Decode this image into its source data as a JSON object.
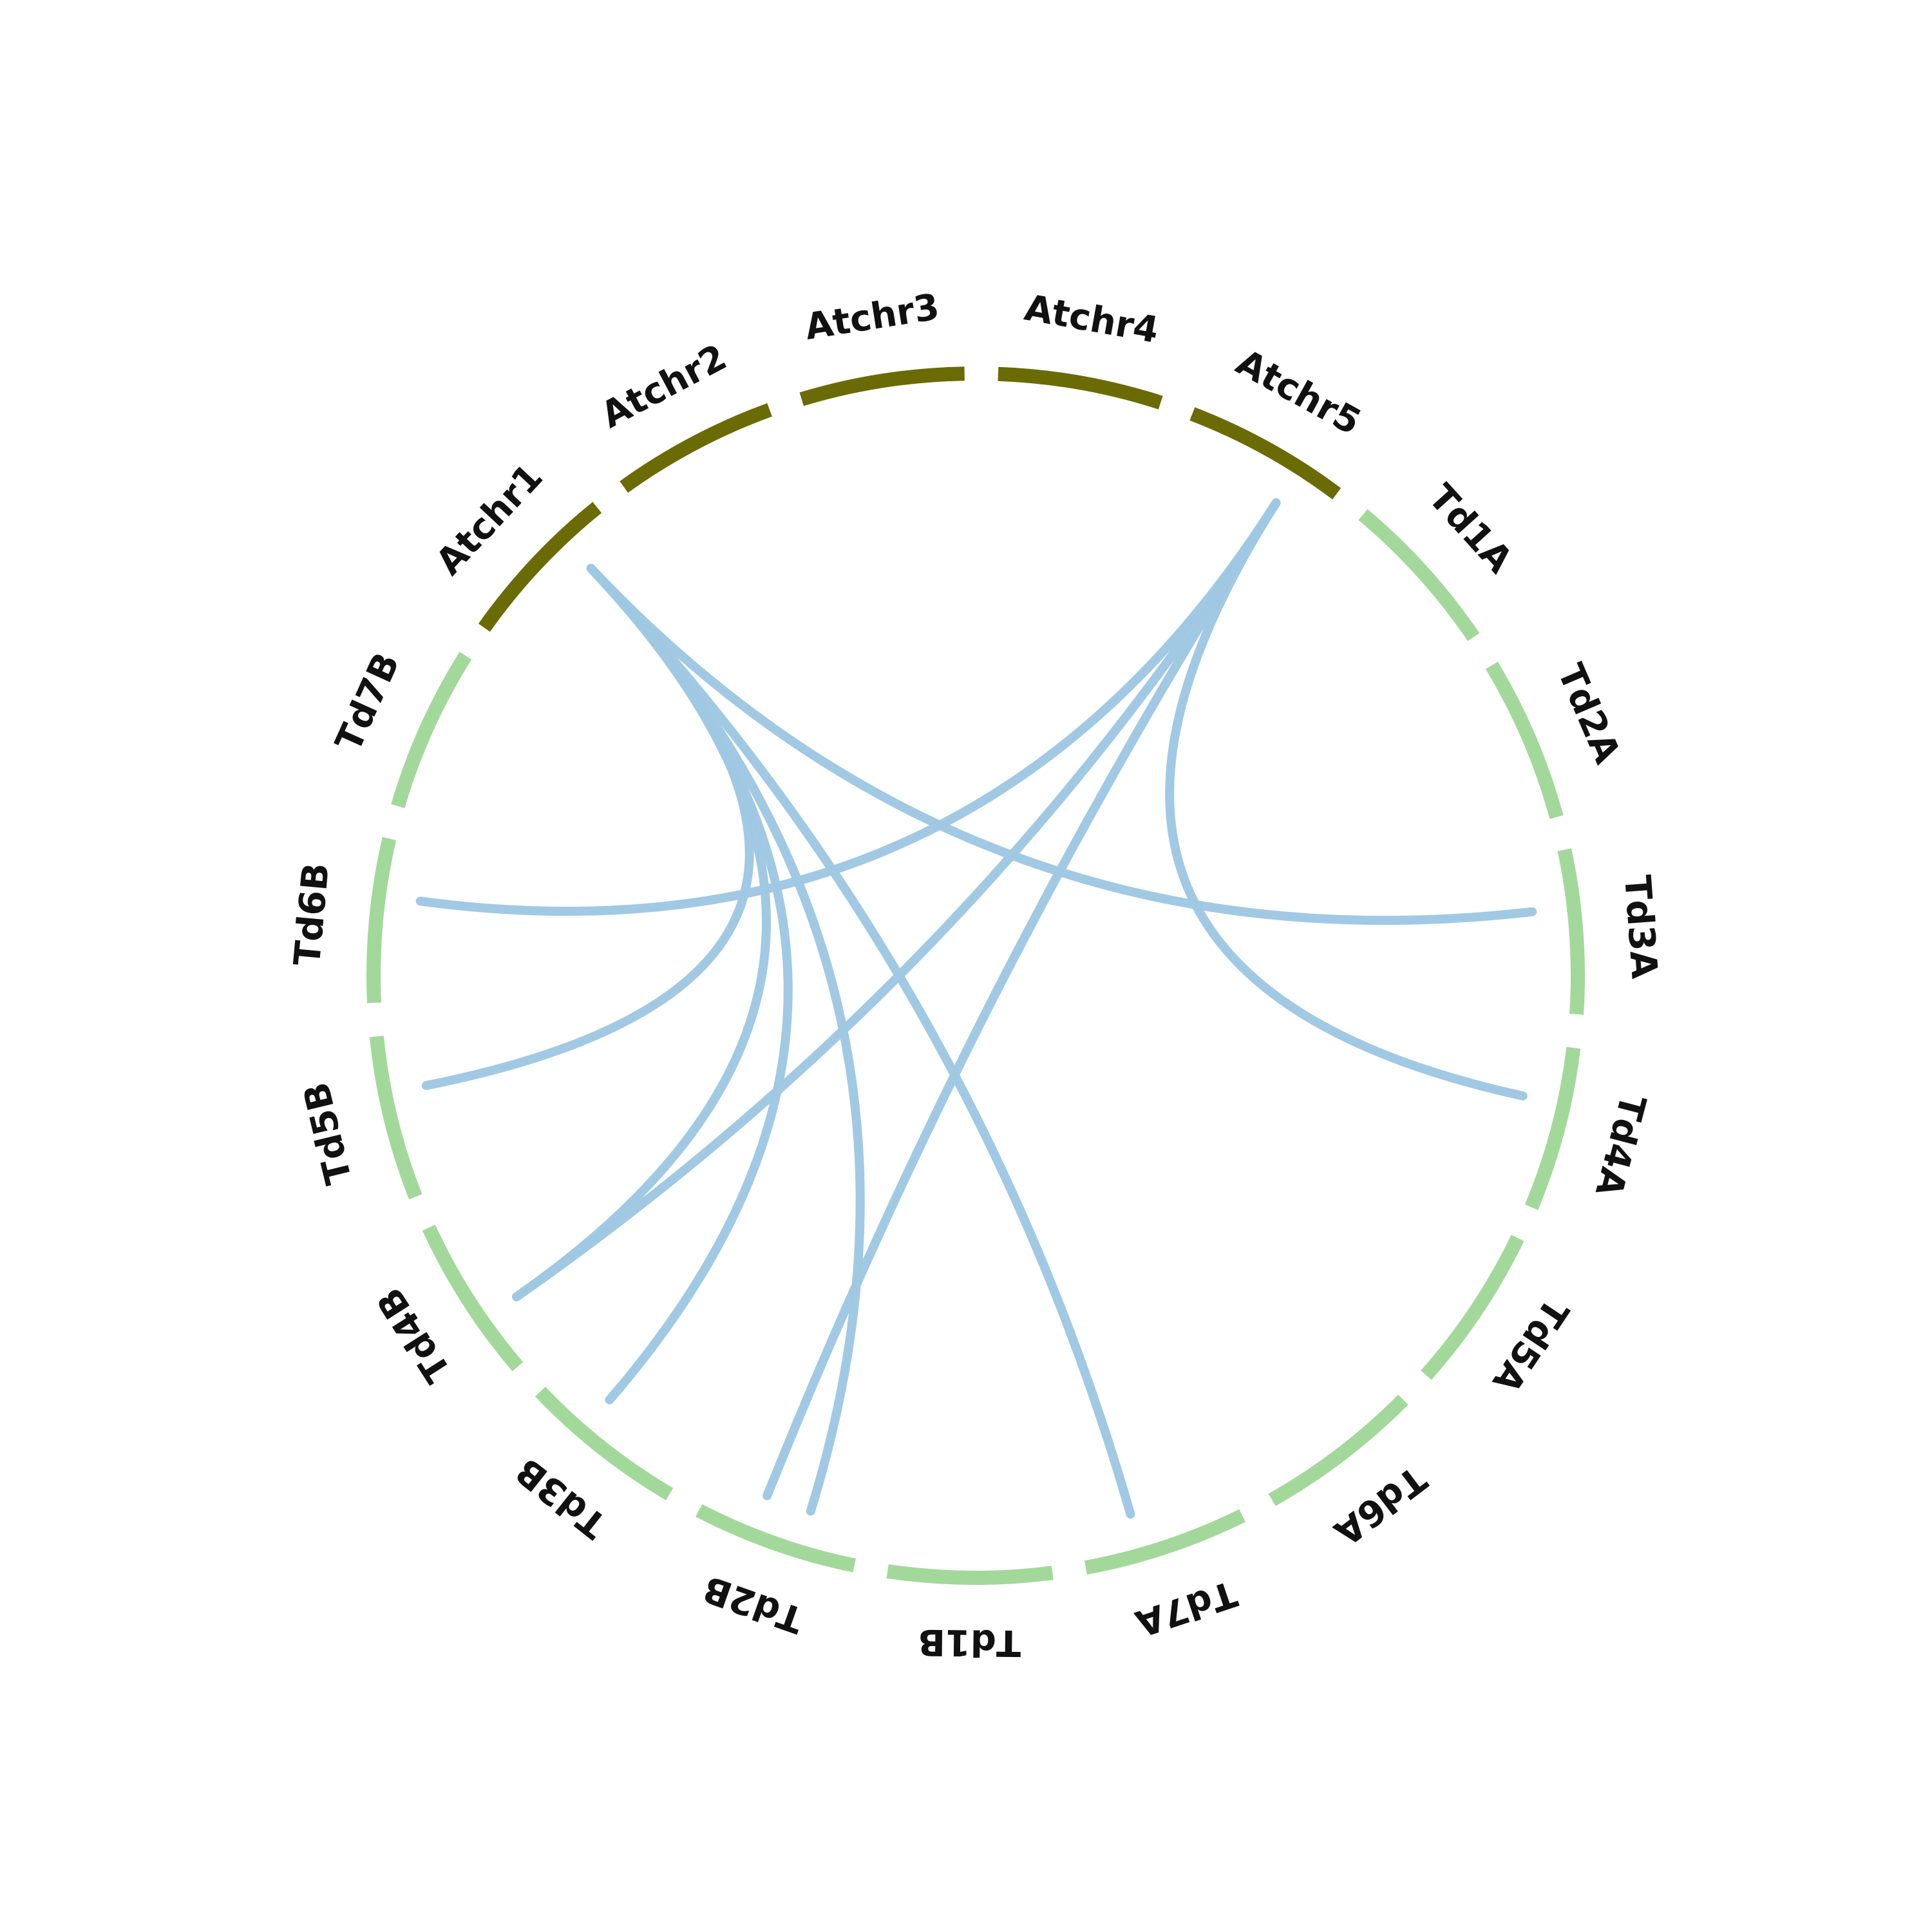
{
  "colors": {
    "atchr": "#6b6b05",
    "td": "#a3d89b",
    "link": "#9fc8e2",
    "label": "#111111"
  },
  "chromosomes": [
    {
      "name": "Atchr1",
      "group": "atchr"
    },
    {
      "name": "Atchr2",
      "group": "atchr"
    },
    {
      "name": "Atchr3",
      "group": "atchr"
    },
    {
      "name": "Atchr4",
      "group": "atchr"
    },
    {
      "name": "Atchr5",
      "group": "atchr"
    },
    {
      "name": "Td1A",
      "group": "td"
    },
    {
      "name": "Td2A",
      "group": "td"
    },
    {
      "name": "Td3A",
      "group": "td"
    },
    {
      "name": "Td4A",
      "group": "td"
    },
    {
      "name": "Td5A",
      "group": "td"
    },
    {
      "name": "Td6A",
      "group": "td"
    },
    {
      "name": "Td7A",
      "group": "td"
    },
    {
      "name": "Td1B",
      "group": "td"
    },
    {
      "name": "Td2B",
      "group": "td"
    },
    {
      "name": "Td3B",
      "group": "td"
    },
    {
      "name": "Td4B",
      "group": "td"
    },
    {
      "name": "Td5B",
      "group": "td"
    },
    {
      "name": "Td6B",
      "group": "td"
    },
    {
      "name": "Td7B",
      "group": "td"
    }
  ],
  "links": [
    {
      "from": "Atchr1",
      "to": "Td3A"
    },
    {
      "from": "Atchr1",
      "to": "Td7A"
    },
    {
      "from": "Atchr1",
      "to": "Td2B"
    },
    {
      "from": "Atchr1",
      "to": "Td3B"
    },
    {
      "from": "Atchr1",
      "to": "Td4B"
    },
    {
      "from": "Atchr1",
      "to": "Td5B"
    },
    {
      "from": "Atchr5",
      "to": "Td4A"
    },
    {
      "from": "Atchr5",
      "to": "Td2B"
    },
    {
      "from": "Atchr5",
      "to": "Td4B"
    },
    {
      "from": "Atchr5",
      "to": "Td6B"
    }
  ]
}
